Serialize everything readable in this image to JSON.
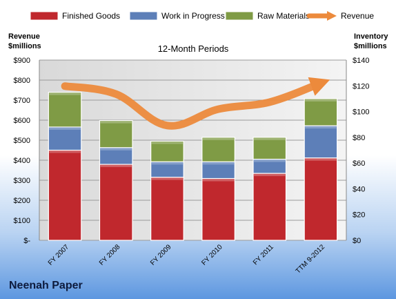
{
  "company": "Neenah Paper",
  "chart_data": {
    "type": "bar",
    "subtitle": "12-Month Periods",
    "categories": [
      "FY 2007",
      "FY 2008",
      "FY 2009",
      "FY 2010",
      "FY 2011",
      "TTM 9-2012"
    ],
    "stacked": true,
    "left_axis": {
      "title": [
        "Revenue",
        "$millions"
      ],
      "range": [
        0,
        900
      ],
      "ticks": [
        0,
        100,
        200,
        300,
        400,
        500,
        600,
        700,
        800,
        900
      ],
      "tick_labels": [
        "$-",
        "$100",
        "$200",
        "$300",
        "$400",
        "$500",
        "$600",
        "$700",
        "$800",
        "$900"
      ]
    },
    "right_axis": {
      "title": [
        "Inventory",
        "$millions"
      ],
      "range": [
        0,
        140
      ],
      "ticks": [
        0,
        20,
        40,
        60,
        80,
        100,
        120,
        140
      ],
      "tick_labels": [
        "$0",
        "$20",
        "$40",
        "$60",
        "$80",
        "$100",
        "$120",
        "$140"
      ]
    },
    "series": [
      {
        "name": "Finished Goods",
        "type": "bar",
        "axis": "right",
        "color": "#c0282d",
        "values": [
          70,
          59,
          49,
          48,
          52,
          64
        ]
      },
      {
        "name": "Work in Progress",
        "type": "bar",
        "axis": "right",
        "color": "#5d7fb8",
        "values": [
          18,
          13,
          12,
          13,
          11,
          25
        ]
      },
      {
        "name": "Raw Materials",
        "type": "bar",
        "axis": "right",
        "color": "#7f9b45",
        "values": [
          27,
          21,
          16,
          19,
          17,
          21
        ]
      },
      {
        "name": "Revenue",
        "type": "line",
        "axis": "left",
        "color": "#ec8a3c",
        "values": [
          770,
          730,
          573,
          655,
          690,
          785
        ]
      }
    ],
    "legend_position": "top",
    "grid": true
  }
}
